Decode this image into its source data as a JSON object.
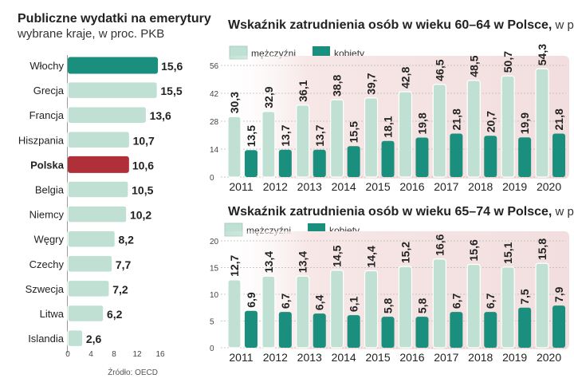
{
  "colors": {
    "light": "#bfe0d3",
    "light_stroke": "#ffffff",
    "dark": "#1a8f7d",
    "highlight": "#b0303a",
    "panel_bg": "#f6e6e6",
    "text": "#222222"
  },
  "chart_data": [
    {
      "type": "bar",
      "orientation": "horizontal",
      "title": "Publiczne wydatki na emerytury",
      "subtitle": "wybrane kraje, w proc. PKB",
      "source": "Źródło: OECD",
      "categories": [
        "Włochy",
        "Grecja",
        "Francja",
        "Hiszpania",
        "Polska",
        "Belgia",
        "Niemcy",
        "Węgry",
        "Czechy",
        "Szwecja",
        "Litwa",
        "Islandia"
      ],
      "values": [
        15.6,
        15.5,
        13.6,
        10.7,
        10.6,
        10.5,
        10.2,
        8.2,
        7.7,
        7.2,
        6.2,
        2.6
      ],
      "value_labels": [
        "15,6",
        "15,5",
        "13,6",
        "10,7",
        "10,6",
        "10,5",
        "10,2",
        "8,2",
        "7,7",
        "7,2",
        "6,2",
        "2,6"
      ],
      "highlight": {
        "Włochy": "dark",
        "Polska": "highlight"
      },
      "bold_categories": [
        "Polska"
      ],
      "xlim": [
        0,
        16
      ],
      "xticks": [
        "0",
        "4",
        "8",
        "12",
        "16"
      ]
    },
    {
      "type": "bar",
      "title_bold": "Wskaźnik zatrudnienia osób w wieku 60–64 w Polsce,",
      "title_rest": " w proc.",
      "categories": [
        "2011",
        "2012",
        "2013",
        "2014",
        "2015",
        "2016",
        "2017",
        "2018",
        "2019",
        "2020"
      ],
      "series": [
        {
          "name": "mężczyźni",
          "color": "light",
          "values": [
            30.3,
            32.9,
            36.1,
            38.8,
            39.7,
            42.8,
            46.5,
            48.5,
            50.7,
            54.3
          ],
          "labels": [
            "30,3",
            "32,9",
            "36,1",
            "38,8",
            "39,7",
            "42,8",
            "46,5",
            "48,5",
            "50,7",
            "54,3"
          ]
        },
        {
          "name": "kobiety",
          "color": "dark",
          "values": [
            13.5,
            13.7,
            13.7,
            15.5,
            18.1,
            19.8,
            21.8,
            20.7,
            19.9,
            21.8
          ],
          "labels": [
            "13,5",
            "13,7",
            "13,7",
            "15,5",
            "18,1",
            "19,8",
            "21,8",
            "20,7",
            "19,9",
            "21,8"
          ]
        }
      ],
      "ylim": [
        0,
        56
      ],
      "yticks": [
        "0",
        "14",
        "28",
        "42",
        "56"
      ]
    },
    {
      "type": "bar",
      "title_bold": "Wskaźnik zatrudnienia osób w wieku 65–74 w Polsce,",
      "title_rest": " w proc.",
      "categories": [
        "2011",
        "2012",
        "2013",
        "2014",
        "2015",
        "2016",
        "2017",
        "2018",
        "2019",
        "2020"
      ],
      "series": [
        {
          "name": "mężczyźni",
          "color": "light",
          "values": [
            12.7,
            13.4,
            13.4,
            14.5,
            14.4,
            15.2,
            16.6,
            15.6,
            15.1,
            15.8
          ],
          "labels": [
            "12,7",
            "13,4",
            "13,4",
            "14,5",
            "14,4",
            "15,2",
            "16,6",
            "15,6",
            "15,1",
            "15,8"
          ]
        },
        {
          "name": "kobiety",
          "color": "dark",
          "values": [
            6.9,
            6.7,
            6.4,
            6.1,
            5.8,
            5.8,
            6.7,
            6.7,
            7.5,
            7.9
          ],
          "labels": [
            "6,9",
            "6,7",
            "6,4",
            "6,1",
            "5,8",
            "5,8",
            "6,7",
            "6,7",
            "7,5",
            "7,9"
          ]
        }
      ],
      "ylim": [
        0,
        20
      ],
      "yticks": [
        "0",
        "5",
        "10",
        "15",
        "20"
      ]
    }
  ]
}
